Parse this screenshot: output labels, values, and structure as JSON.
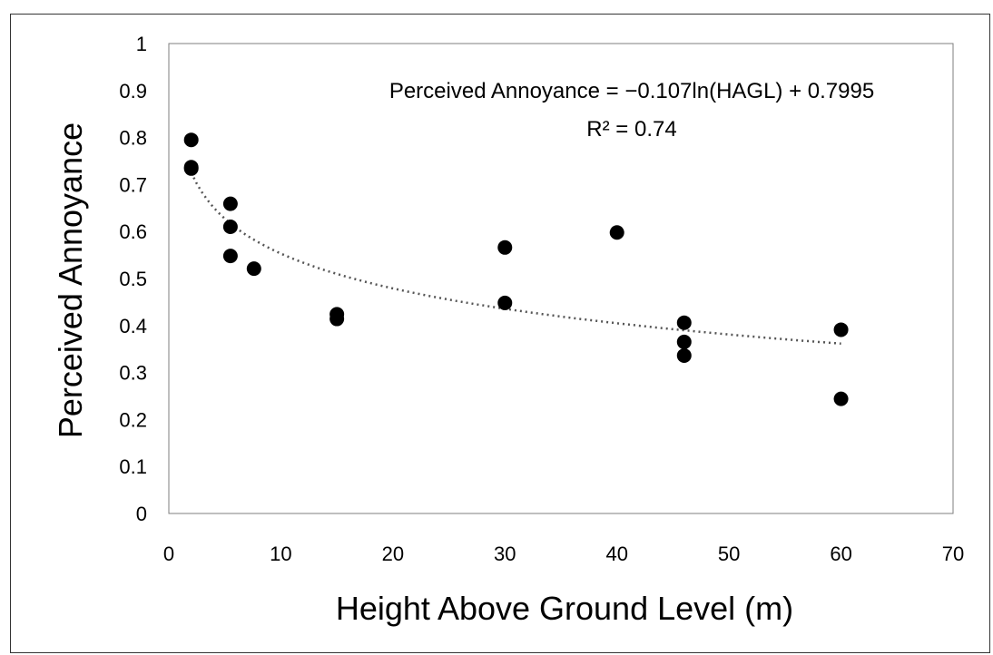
{
  "chart_data": {
    "type": "scatter",
    "xlabel": "Height Above Ground Level (m)",
    "ylabel": "Perceived Annoyance",
    "xlim": [
      0,
      70
    ],
    "ylim": [
      0,
      1
    ],
    "x_ticks": [
      "0",
      "10",
      "20",
      "30",
      "40",
      "50",
      "60",
      "70"
    ],
    "y_ticks": [
      "0",
      "0.1",
      "0.2",
      "0.3",
      "0.4",
      "0.5",
      "0.6",
      "0.7",
      "0.8",
      "0.9",
      "1"
    ],
    "grid": false,
    "legend": "none",
    "points": [
      {
        "x": 2,
        "y": 0.795
      },
      {
        "x": 2,
        "y": 0.737
      },
      {
        "x": 2,
        "y": 0.734
      },
      {
        "x": 5.5,
        "y": 0.659
      },
      {
        "x": 5.5,
        "y": 0.61
      },
      {
        "x": 5.5,
        "y": 0.548
      },
      {
        "x": 7.6,
        "y": 0.521
      },
      {
        "x": 15,
        "y": 0.424
      },
      {
        "x": 15,
        "y": 0.414
      },
      {
        "x": 30,
        "y": 0.566
      },
      {
        "x": 30,
        "y": 0.448
      },
      {
        "x": 40,
        "y": 0.598
      },
      {
        "x": 46,
        "y": 0.406
      },
      {
        "x": 46,
        "y": 0.365
      },
      {
        "x": 46,
        "y": 0.336
      },
      {
        "x": 60,
        "y": 0.391
      },
      {
        "x": 60,
        "y": 0.244
      }
    ],
    "trendline": {
      "type": "logarithmic",
      "coefficient": -0.107,
      "intercept": 0.7995,
      "x_range": [
        2,
        60
      ],
      "style": "dotted",
      "equation_label": "Perceived Annoyance = −0.107ln(HAGL) + 0.7995",
      "r2_label": "R² = 0.74"
    },
    "colors": {
      "points": "#000000",
      "trendline": "#555555",
      "axis": "#7f7f7f"
    }
  }
}
